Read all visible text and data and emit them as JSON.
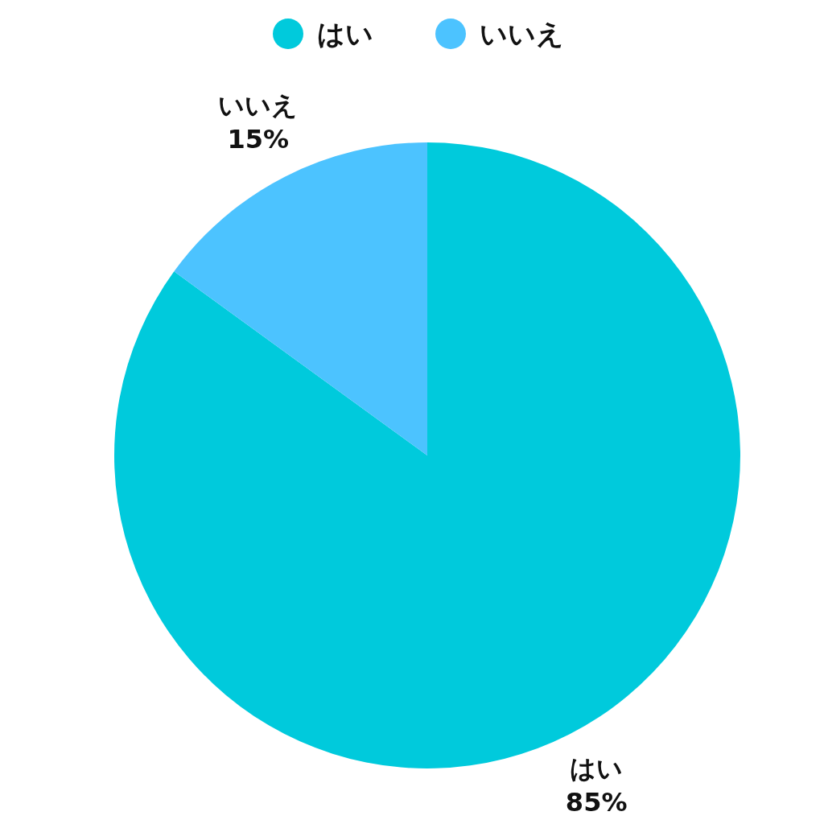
{
  "chart_data": {
    "type": "pie",
    "categories": [
      "はい",
      "いいえ"
    ],
    "values": [
      85,
      15
    ],
    "colors": [
      "#00cadc",
      "#4cc3ff"
    ],
    "legend": "top",
    "value_labels": [
      "85%",
      "15%"
    ]
  }
}
